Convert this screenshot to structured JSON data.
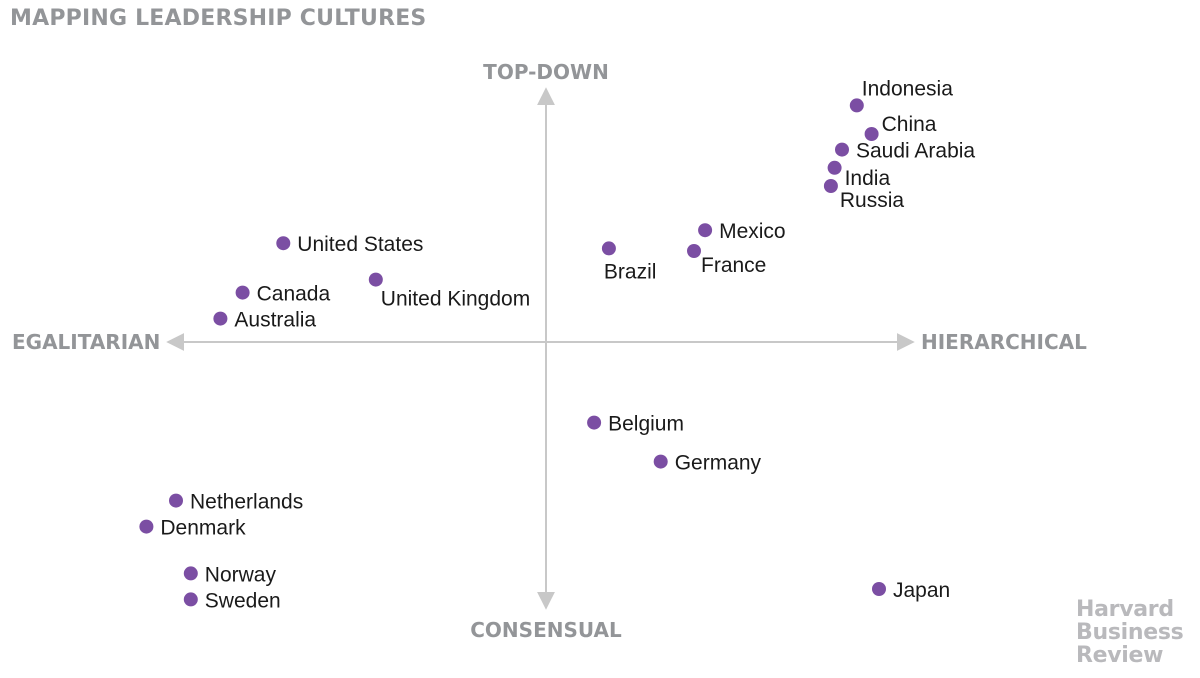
{
  "title": "MAPPING LEADERSHIP CULTURES",
  "brand": [
    "Harvard",
    "Business",
    "Review"
  ],
  "colors": {
    "point": "#7b4ea3",
    "axis": "#c8c8c8",
    "axis_text": "#939598",
    "brand": "#b9b9bc"
  },
  "chart_data": {
    "type": "scatter",
    "title": "MAPPING LEADERSHIP CULTURES",
    "axes": {
      "x_negative": "EGALITARIAN",
      "x_positive": "HIERARCHICAL",
      "y_positive": "TOP-DOWN",
      "y_negative": "CONSENSUAL"
    },
    "xlim": [
      -100,
      100
    ],
    "ylim": [
      -100,
      100
    ],
    "grid": false,
    "points": [
      {
        "label": "Indonesia",
        "x": 84,
        "y": 91
      },
      {
        "label": "China",
        "x": 88,
        "y": 80
      },
      {
        "label": "Saudi Arabia",
        "x": 80,
        "y": 74
      },
      {
        "label": "India",
        "x": 78,
        "y": 67
      },
      {
        "label": "Russia",
        "x": 77,
        "y": 60
      },
      {
        "label": "Mexico",
        "x": 43,
        "y": 43
      },
      {
        "label": "France",
        "x": 40,
        "y": 35
      },
      {
        "label": "Brazil",
        "x": 17,
        "y": 36
      },
      {
        "label": "United States",
        "x": -71,
        "y": 38
      },
      {
        "label": "United Kingdom",
        "x": -46,
        "y": 24
      },
      {
        "label": "Canada",
        "x": -82,
        "y": 19
      },
      {
        "label": "Australia",
        "x": -88,
        "y": 9
      },
      {
        "label": "Belgium",
        "x": 13,
        "y": -31
      },
      {
        "label": "Germany",
        "x": 31,
        "y": -46
      },
      {
        "label": "Netherlands",
        "x": -100,
        "y": -61
      },
      {
        "label": "Denmark",
        "x": -108,
        "y": -71
      },
      {
        "label": "Norway",
        "x": -96,
        "y": -89
      },
      {
        "label": "Sweden",
        "x": -96,
        "y": -99
      },
      {
        "label": "Japan",
        "x": 90,
        "y": -95
      }
    ]
  }
}
